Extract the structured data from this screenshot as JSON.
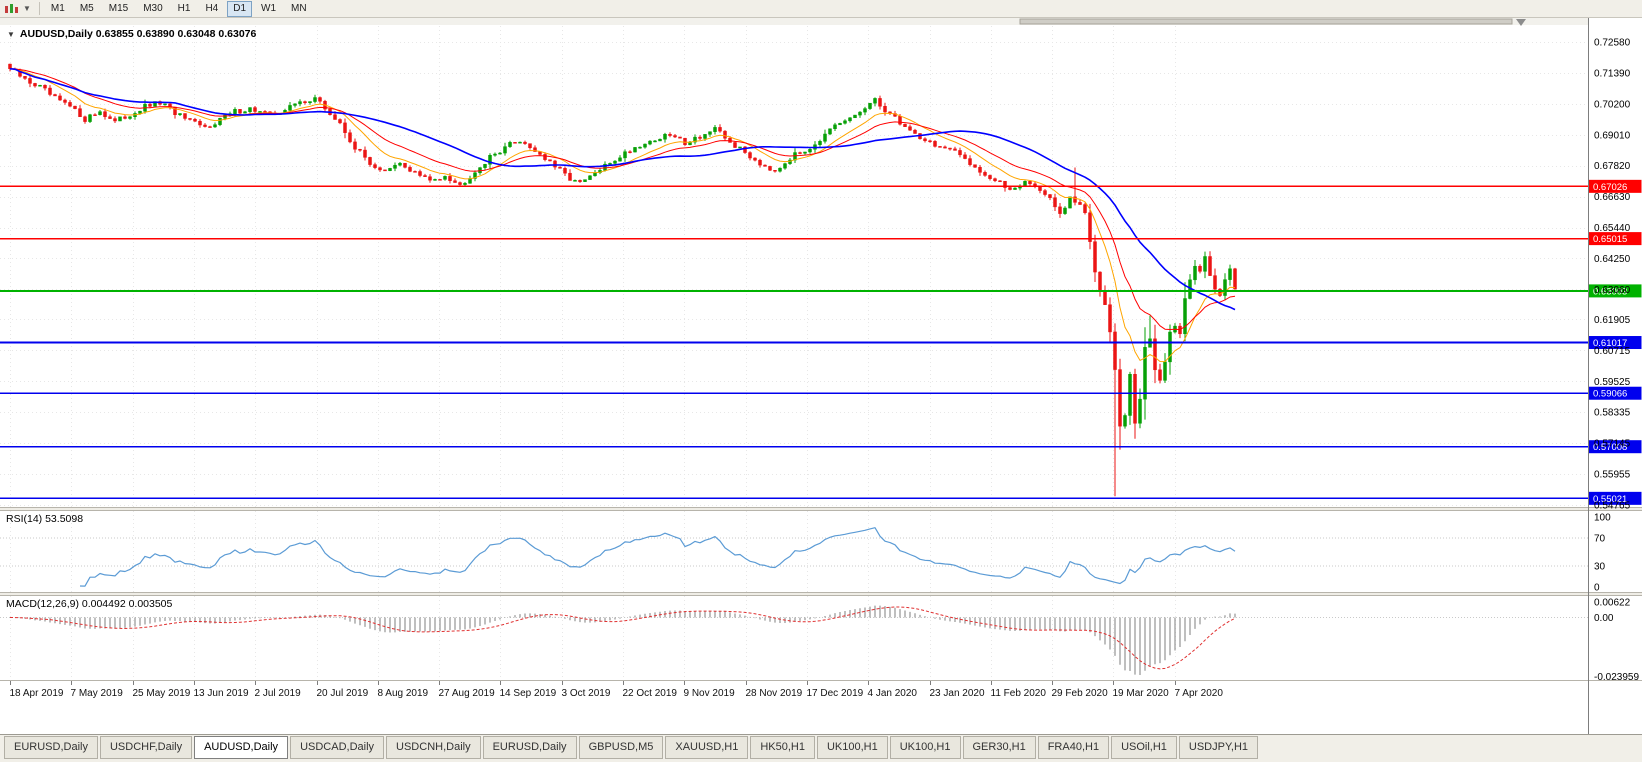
{
  "toolbar": {
    "timeframes": [
      "M1",
      "M5",
      "M15",
      "M30",
      "H1",
      "H4",
      "D1",
      "W1",
      "MN"
    ],
    "active": "D1"
  },
  "chart": {
    "title_line": "AUDUSD,Daily  0.63855 0.63890 0.63048 0.63076"
  },
  "indicators": {
    "rsi_label": "RSI(14) 53.5098",
    "macd_label": "MACD(12,26,9) 0.004492 0.003505"
  },
  "colors": {
    "up": "#07A007",
    "down": "#EB1515",
    "grid": "#e7e7e7",
    "axis_line": "#7d7d7d",
    "rsi_line": "#5B9BD5",
    "macd_hist": "#7F7F7F",
    "macd_signal": "#E03131"
  },
  "tabs": {
    "items": [
      "EURUSD,Daily",
      "USDCHF,Daily",
      "AUDUSD,Daily",
      "USDCAD,Daily",
      "USDCNH,Daily",
      "EURUSD,Daily",
      "GBPUSD,M5",
      "XAUUSD,H1",
      "HK50,H1",
      "UK100,H1",
      "UK100,H1",
      "GER30,H1",
      "FRA40,H1",
      "USOil,H1",
      "USDJPY,H1"
    ],
    "active_index": 2
  },
  "chart_data": {
    "type": "candlestick",
    "symbol": "AUDUSD",
    "timeframe": "Daily",
    "last_quote": {
      "open": 0.63855,
      "high": 0.6389,
      "low": 0.63048,
      "close": 0.63076
    },
    "bar_count": 246,
    "price_axis": {
      "top": 0.7258,
      "bottom": 0.54765
    },
    "price_ticks": [
      "0.72580",
      "0.71390",
      "0.70200",
      "0.69010",
      "0.67820",
      "0.66630",
      "0.65440",
      "0.64250",
      "0.63060",
      "0.61905",
      "0.60715",
      "0.59525",
      "0.58335",
      "0.57145",
      "0.55955",
      "0.54765"
    ],
    "dates": [
      "18 Apr 2019",
      "7 May 2019",
      "25 May 2019",
      "13 Jun 2019",
      "2 Jul 2019",
      "20 Jul 2019",
      "8 Aug 2019",
      "27 Aug 2019",
      "14 Sep 2019",
      "3 Oct 2019",
      "22 Oct 2019",
      "9 Nov 2019",
      "28 Nov 2019",
      "17 Dec 2019",
      "4 Jan 2020",
      "23 Jan 2020",
      "11 Feb 2020",
      "29 Feb 2020",
      "19 Mar 2020",
      "7 Apr 2020"
    ],
    "levels": [
      {
        "price": 0.67026,
        "color": "#FF0000",
        "width": 1.4
      },
      {
        "price": 0.65015,
        "color": "#FF0000",
        "width": 1.4
      },
      {
        "price": 0.63003,
        "color": "#00B200",
        "width": 2
      },
      {
        "price": 0.61017,
        "color": "#0000EE",
        "width": 1.8
      },
      {
        "price": 0.59066,
        "color": "#0000EE",
        "width": 1.8
      },
      {
        "price": 0.57008,
        "color": "#0000EE",
        "width": 1.8
      },
      {
        "price": 0.55021,
        "color": "#0000EE",
        "width": 1.8
      }
    ],
    "moving_averages": [
      {
        "period": 10,
        "type": "ema",
        "color": "#FFA500",
        "width": 1
      },
      {
        "period": 20,
        "type": "ema",
        "color": "#FF0000",
        "width": 1
      },
      {
        "period": 34,
        "type": "sma",
        "color": "#0000FF",
        "width": 1.6
      }
    ],
    "rsi": {
      "period": 14,
      "current": 53.5098,
      "levels": [
        70,
        30
      ],
      "axis": [
        100,
        70,
        30,
        0
      ]
    },
    "macd": {
      "fast": 12,
      "slow": 26,
      "signal": 9,
      "current_main": 0.004492,
      "current_signal": 0.003505,
      "axis": [
        {
          "label": "0.00622",
          "value": 0.00622
        },
        {
          "label": "0.00",
          "value": 0
        },
        {
          "label": "-0.023959",
          "value": -0.023959
        }
      ],
      "scale_top": 0.0075,
      "scale_bottom": -0.0245
    },
    "close_anchors": [
      [
        0,
        0.7155
      ],
      [
        3,
        0.7112
      ],
      [
        6,
        0.7085
      ],
      [
        9,
        0.704
      ],
      [
        12,
        0.7008
      ],
      [
        15,
        0.6962
      ],
      [
        18,
        0.6992
      ],
      [
        21,
        0.695
      ],
      [
        24,
        0.6978
      ],
      [
        27,
        0.7008
      ],
      [
        30,
        0.7024
      ],
      [
        33,
        0.6986
      ],
      [
        36,
        0.695
      ],
      [
        39,
        0.6928
      ],
      [
        42,
        0.6962
      ],
      [
        45,
        0.699
      ],
      [
        48,
        0.7002
      ],
      [
        52,
        0.6976
      ],
      [
        55,
        0.6998
      ],
      [
        58,
        0.7026
      ],
      [
        61,
        0.7042
      ],
      [
        63,
        0.7002
      ],
      [
        66,
        0.694
      ],
      [
        69,
        0.6852
      ],
      [
        72,
        0.6792
      ],
      [
        75,
        0.6757
      ],
      [
        78,
        0.6788
      ],
      [
        81,
        0.6756
      ],
      [
        84,
        0.6722
      ],
      [
        87,
        0.6748
      ],
      [
        90,
        0.6706
      ],
      [
        93,
        0.6762
      ],
      [
        96,
        0.6812
      ],
      [
        99,
        0.6856
      ],
      [
        102,
        0.688
      ],
      [
        105,
        0.6842
      ],
      [
        108,
        0.6792
      ],
      [
        111,
        0.6747
      ],
      [
        114,
        0.6712
      ],
      [
        117,
        0.6752
      ],
      [
        120,
        0.6792
      ],
      [
        123,
        0.6832
      ],
      [
        126,
        0.6862
      ],
      [
        129,
        0.6882
      ],
      [
        132,
        0.69
      ],
      [
        135,
        0.6872
      ],
      [
        138,
        0.6896
      ],
      [
        141,
        0.692
      ],
      [
        144,
        0.6872
      ],
      [
        147,
        0.6832
      ],
      [
        150,
        0.6792
      ],
      [
        153,
        0.6766
      ],
      [
        156,
        0.6812
      ],
      [
        159,
        0.6842
      ],
      [
        162,
        0.6882
      ],
      [
        165,
        0.693
      ],
      [
        168,
        0.6962
      ],
      [
        171,
        0.7004
      ],
      [
        173,
        0.703
      ],
      [
        176,
        0.6982
      ],
      [
        179,
        0.6932
      ],
      [
        182,
        0.6892
      ],
      [
        185,
        0.6862
      ],
      [
        188,
        0.684
      ],
      [
        191,
        0.6812
      ],
      [
        194,
        0.6762
      ],
      [
        197,
        0.6722
      ],
      [
        200,
        0.6692
      ],
      [
        203,
        0.6722
      ],
      [
        206,
        0.6692
      ],
      [
        208,
        0.6652
      ],
      [
        210,
        0.6592
      ],
      [
        212,
        0.6652
      ],
      [
        213,
        0.6642
      ],
      [
        214,
        0.6632
      ],
      [
        215,
        0.6582
      ],
      [
        216,
        0.6482
      ],
      [
        217,
        0.6402
      ],
      [
        218,
        0.6322
      ],
      [
        219,
        0.6282
      ],
      [
        220,
        0.6172
      ],
      [
        221,
        0.5982
      ],
      [
        222,
        0.5782
      ],
      [
        223,
        0.5822
      ],
      [
        224,
        0.5952
      ],
      [
        225,
        0.5802
      ],
      [
        226,
        0.5902
      ],
      [
        227,
        0.6082
      ],
      [
        228,
        0.6122
      ],
      [
        229,
        0.5962
      ],
      [
        230,
        0.5932
      ],
      [
        231,
        0.6052
      ],
      [
        232,
        0.6132
      ],
      [
        233,
        0.6182
      ],
      [
        234,
        0.6132
      ],
      [
        235,
        0.6272
      ],
      [
        236,
        0.6352
      ],
      [
        237,
        0.6402
      ],
      [
        238,
        0.6382
      ],
      [
        239,
        0.6432
      ],
      [
        240,
        0.6352
      ],
      [
        241,
        0.6302
      ],
      [
        242,
        0.6282
      ],
      [
        243,
        0.6342
      ],
      [
        244,
        0.63855
      ],
      [
        245,
        0.63076
      ]
    ],
    "special_bars": [
      {
        "bar": 213,
        "high": 0.6775
      },
      {
        "bar": 221,
        "low": 0.551
      },
      {
        "bar": 228,
        "high": 0.6205
      }
    ]
  }
}
